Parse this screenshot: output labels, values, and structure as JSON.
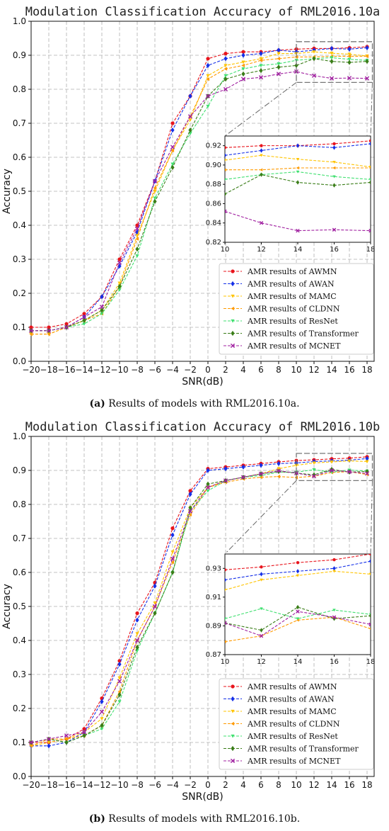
{
  "chart_data": [
    {
      "type": "line",
      "title": "Modulation Classification Accuracy of RML2016.10a",
      "caption_label": "(a)",
      "caption_text": "Results of models with RML2016.10a.",
      "xlabel": "SNR(dB)",
      "ylabel": "Accuracy",
      "x": [
        -20,
        -18,
        -16,
        -14,
        -12,
        -10,
        -8,
        -6,
        -4,
        -2,
        0,
        2,
        4,
        6,
        8,
        10,
        12,
        14,
        16,
        18
      ],
      "xlim": [
        -20,
        18
      ],
      "ylim": [
        0.0,
        1.0
      ],
      "x_ticks": [
        -20,
        -18,
        -16,
        -14,
        -12,
        -10,
        -8,
        -6,
        -4,
        -2,
        0,
        2,
        4,
        6,
        8,
        10,
        12,
        14,
        16,
        18
      ],
      "y_ticks": [
        "0.0",
        "0.1",
        "0.2",
        "0.3",
        "0.4",
        "0.5",
        "0.6",
        "0.7",
        "0.8",
        "0.9",
        "1.0"
      ],
      "grid": true,
      "legend_position": "lower-right",
      "inset": {
        "xlim": [
          10,
          18
        ],
        "ylim": [
          0.82,
          0.93
        ],
        "x_ticks": [
          10,
          12,
          14,
          16,
          18
        ],
        "y_ticks": [
          "0.82",
          "0.84",
          "0.86",
          "0.88",
          "0.90",
          "0.92"
        ],
        "position": "right-middle"
      },
      "series": [
        {
          "name": "AMR results of AWMN",
          "color": "#e8141c",
          "marker": "circle",
          "values": [
            0.1,
            0.1,
            0.11,
            0.14,
            0.19,
            0.3,
            0.4,
            0.53,
            0.7,
            0.78,
            0.89,
            0.905,
            0.91,
            0.91,
            0.915,
            0.918,
            0.92,
            0.92,
            0.922,
            0.925
          ]
        },
        {
          "name": "AMR results of AWAN",
          "color": "#1530e8",
          "marker": "diamond",
          "values": [
            0.09,
            0.09,
            0.1,
            0.13,
            0.19,
            0.28,
            0.38,
            0.53,
            0.68,
            0.78,
            0.87,
            0.89,
            0.9,
            0.905,
            0.915,
            0.91,
            0.915,
            0.92,
            0.918,
            0.922
          ]
        },
        {
          "name": "AMR results of MAMC",
          "color": "#ffc400",
          "marker": "triangle-down",
          "values": [
            0.08,
            0.08,
            0.1,
            0.12,
            0.15,
            0.23,
            0.37,
            0.5,
            0.62,
            0.71,
            0.84,
            0.87,
            0.88,
            0.89,
            0.905,
            0.905,
            0.91,
            0.906,
            0.903,
            0.898
          ]
        },
        {
          "name": "AMR results of CLDNN",
          "color": "#ff9a00",
          "marker": "triangle-left",
          "values": [
            0.08,
            0.08,
            0.1,
            0.12,
            0.14,
            0.22,
            0.36,
            0.51,
            0.62,
            0.72,
            0.83,
            0.86,
            0.87,
            0.885,
            0.89,
            0.895,
            0.895,
            0.897,
            0.897,
            0.897
          ]
        },
        {
          "name": "AMR results of ResNet",
          "color": "#40e070",
          "marker": "triangle-down",
          "values": [
            0.09,
            0.09,
            0.1,
            0.11,
            0.14,
            0.21,
            0.31,
            0.48,
            0.58,
            0.67,
            0.75,
            0.84,
            0.86,
            0.87,
            0.875,
            0.885,
            0.89,
            0.893,
            0.888,
            0.885
          ]
        },
        {
          "name": "AMR results of Transformer",
          "color": "#3a7d18",
          "marker": "diamond",
          "values": [
            0.09,
            0.09,
            0.1,
            0.12,
            0.15,
            0.22,
            0.33,
            0.47,
            0.57,
            0.68,
            0.78,
            0.83,
            0.845,
            0.855,
            0.865,
            0.87,
            0.89,
            0.882,
            0.879,
            0.882
          ]
        },
        {
          "name": "AMR results of MCNET",
          "color": "#a020a0",
          "marker": "x",
          "values": [
            0.09,
            0.09,
            0.1,
            0.13,
            0.16,
            0.29,
            0.39,
            0.53,
            0.63,
            0.72,
            0.78,
            0.8,
            0.83,
            0.835,
            0.845,
            0.852,
            0.84,
            0.832,
            0.833,
            0.832
          ]
        }
      ]
    },
    {
      "type": "line",
      "title": "Modulation Classification Accuracy of RML2016.10b",
      "caption_label": "(b)",
      "caption_text": "Results of models with RML2016.10b.",
      "xlabel": "SNR(dB)",
      "ylabel": "Accuracy",
      "x": [
        -20,
        -18,
        -16,
        -14,
        -12,
        -10,
        -8,
        -6,
        -4,
        -2,
        0,
        2,
        4,
        6,
        8,
        10,
        12,
        14,
        16,
        18
      ],
      "xlim": [
        -20,
        18
      ],
      "ylim": [
        0.0,
        1.0
      ],
      "x_ticks": [
        -20,
        -18,
        -16,
        -14,
        -12,
        -10,
        -8,
        -6,
        -4,
        -2,
        0,
        2,
        4,
        6,
        8,
        10,
        12,
        14,
        16,
        18
      ],
      "y_ticks": [
        "0.0",
        "0.1",
        "0.2",
        "0.3",
        "0.4",
        "0.5",
        "0.6",
        "0.7",
        "0.8",
        "0.9",
        "1.0"
      ],
      "grid": true,
      "legend_position": "lower-right",
      "inset": {
        "xlim": [
          10,
          18
        ],
        "ylim": [
          0.87,
          0.94
        ],
        "x_ticks": [
          10,
          12,
          14,
          16,
          18
        ],
        "y_ticks": [
          "0.87",
          "0.89",
          "0.91",
          "0.93"
        ],
        "position": "right-middle"
      },
      "series": [
        {
          "name": "AMR results of AWMN",
          "color": "#e8141c",
          "marker": "circle",
          "values": [
            0.1,
            0.1,
            0.11,
            0.14,
            0.23,
            0.34,
            0.48,
            0.57,
            0.73,
            0.84,
            0.905,
            0.91,
            0.915,
            0.92,
            0.925,
            0.929,
            0.931,
            0.934,
            0.936,
            0.94
          ]
        },
        {
          "name": "AMR results of AWAN",
          "color": "#1530e8",
          "marker": "diamond",
          "values": [
            0.09,
            0.09,
            0.1,
            0.13,
            0.22,
            0.33,
            0.46,
            0.56,
            0.71,
            0.83,
            0.9,
            0.905,
            0.91,
            0.915,
            0.92,
            0.922,
            0.926,
            0.928,
            0.93,
            0.935
          ]
        },
        {
          "name": "AMR results of MAMC",
          "color": "#ffc400",
          "marker": "triangle-down",
          "values": [
            0.09,
            0.1,
            0.11,
            0.13,
            0.17,
            0.29,
            0.42,
            0.51,
            0.66,
            0.79,
            0.85,
            0.87,
            0.88,
            0.89,
            0.905,
            0.915,
            0.922,
            0.925,
            0.928,
            0.926
          ]
        },
        {
          "name": "AMR results of CLDNN",
          "color": "#ff9a00",
          "marker": "triangle-left",
          "values": [
            0.09,
            0.11,
            0.11,
            0.12,
            0.15,
            0.25,
            0.4,
            0.5,
            0.63,
            0.77,
            0.85,
            0.865,
            0.875,
            0.88,
            0.882,
            0.879,
            0.883,
            0.894,
            0.896,
            0.888
          ]
        },
        {
          "name": "AMR results of ResNet",
          "color": "#40e070",
          "marker": "triangle-down",
          "values": [
            0.1,
            0.11,
            0.1,
            0.12,
            0.14,
            0.22,
            0.37,
            0.48,
            0.6,
            0.78,
            0.84,
            0.87,
            0.88,
            0.885,
            0.895,
            0.895,
            0.902,
            0.895,
            0.901,
            0.898
          ]
        },
        {
          "name": "AMR results of Transformer",
          "color": "#3a7d18",
          "marker": "diamond",
          "values": [
            0.1,
            0.11,
            0.1,
            0.12,
            0.15,
            0.24,
            0.38,
            0.48,
            0.6,
            0.79,
            0.86,
            0.87,
            0.88,
            0.89,
            0.897,
            0.892,
            0.887,
            0.903,
            0.895,
            0.897
          ]
        },
        {
          "name": "AMR results of MCNET",
          "color": "#a020a0",
          "marker": "x",
          "values": [
            0.1,
            0.11,
            0.12,
            0.13,
            0.19,
            0.28,
            0.4,
            0.5,
            0.64,
            0.78,
            0.85,
            0.87,
            0.88,
            0.89,
            0.899,
            0.892,
            0.883,
            0.9,
            0.896,
            0.891
          ]
        }
      ]
    }
  ]
}
